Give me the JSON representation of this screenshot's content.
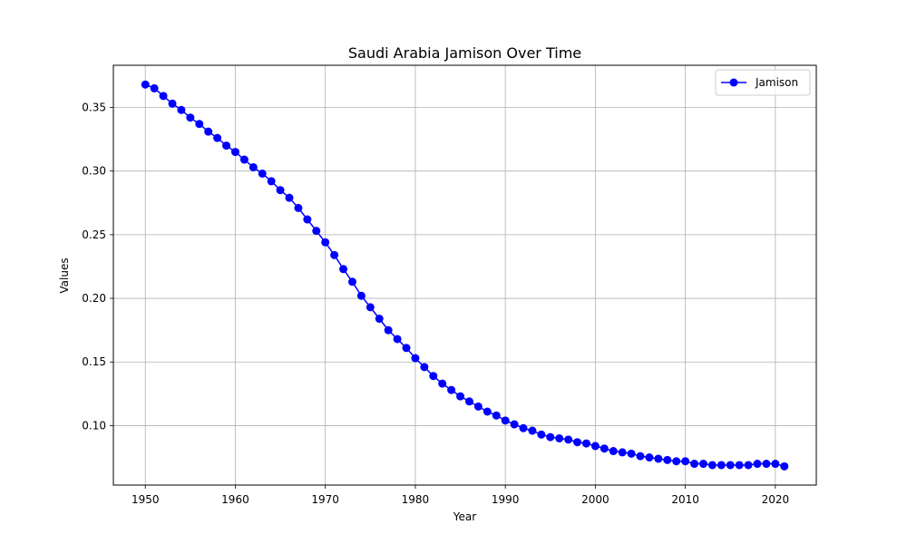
{
  "chart_data": {
    "type": "line",
    "title": "Saudi Arabia Jamison Over Time",
    "xlabel": "Year",
    "ylabel": "Values",
    "xlim": [
      1946.45,
      2024.55
    ],
    "ylim": [
      0.0533,
      0.3831
    ],
    "xticks": [
      1950,
      1960,
      1970,
      1980,
      1990,
      2000,
      2010,
      2020
    ],
    "yticks": [
      0.1,
      0.15,
      0.2,
      0.25,
      0.3,
      0.35
    ],
    "ytick_labels": [
      "0.10",
      "0.15",
      "0.20",
      "0.25",
      "0.30",
      "0.35"
    ],
    "grid": true,
    "legend_position": "top-right",
    "series": [
      {
        "name": "Jamison",
        "color": "#0000ff",
        "marker": "circle",
        "x": [
          1950,
          1951,
          1952,
          1953,
          1954,
          1955,
          1956,
          1957,
          1958,
          1959,
          1960,
          1961,
          1962,
          1963,
          1964,
          1965,
          1966,
          1967,
          1968,
          1969,
          1970,
          1971,
          1972,
          1973,
          1974,
          1975,
          1976,
          1977,
          1978,
          1979,
          1980,
          1981,
          1982,
          1983,
          1984,
          1985,
          1986,
          1987,
          1988,
          1989,
          1990,
          1991,
          1992,
          1993,
          1994,
          1995,
          1996,
          1997,
          1998,
          1999,
          2000,
          2001,
          2002,
          2003,
          2004,
          2005,
          2006,
          2007,
          2008,
          2009,
          2010,
          2011,
          2012,
          2013,
          2014,
          2015,
          2016,
          2017,
          2018,
          2019,
          2020,
          2021
        ],
        "values": [
          0.368,
          0.365,
          0.359,
          0.353,
          0.348,
          0.342,
          0.337,
          0.331,
          0.326,
          0.32,
          0.315,
          0.309,
          0.303,
          0.298,
          0.292,
          0.285,
          0.279,
          0.271,
          0.262,
          0.253,
          0.244,
          0.234,
          0.223,
          0.213,
          0.202,
          0.193,
          0.184,
          0.175,
          0.168,
          0.161,
          0.153,
          0.146,
          0.139,
          0.133,
          0.128,
          0.123,
          0.119,
          0.115,
          0.111,
          0.108,
          0.104,
          0.101,
          0.098,
          0.096,
          0.093,
          0.091,
          0.09,
          0.089,
          0.087,
          0.086,
          0.084,
          0.082,
          0.08,
          0.079,
          0.078,
          0.076,
          0.075,
          0.074,
          0.073,
          0.072,
          0.072,
          0.07,
          0.07,
          0.069,
          0.069,
          0.069,
          0.069,
          0.069,
          0.07,
          0.07,
          0.07,
          0.068
        ]
      }
    ]
  }
}
